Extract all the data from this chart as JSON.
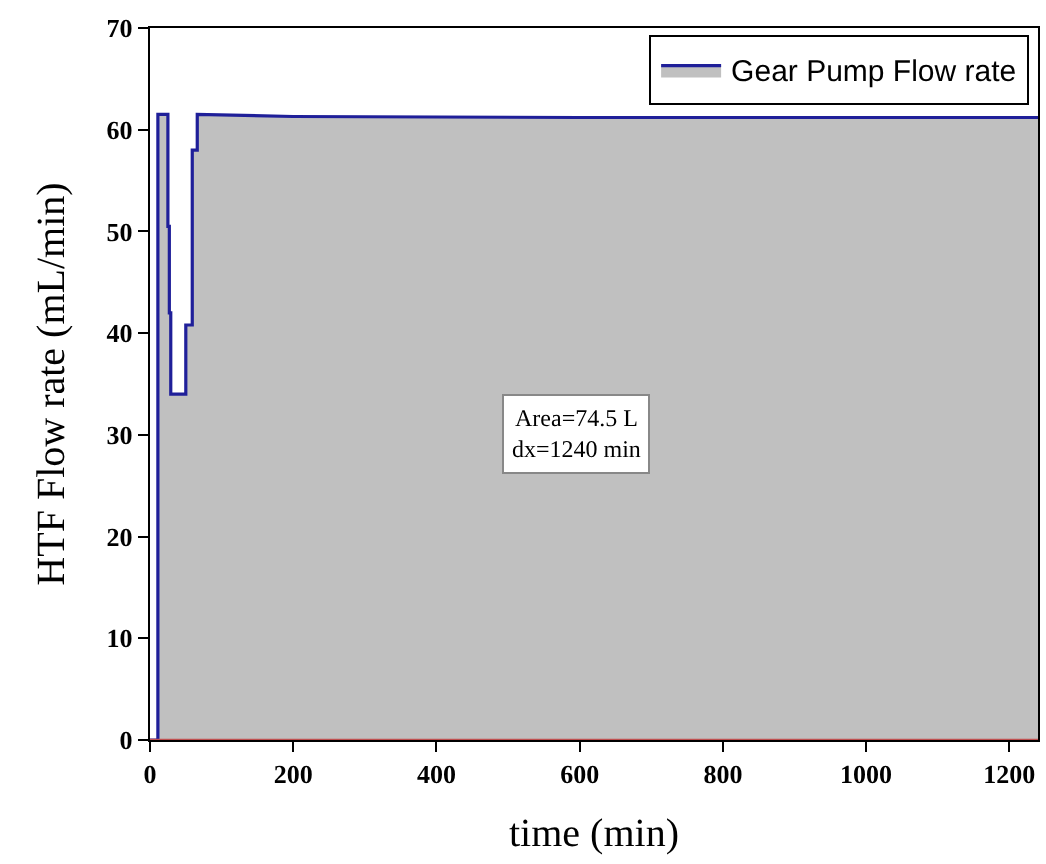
{
  "chart_data": {
    "type": "area",
    "xlabel": "time (min)",
    "ylabel": "HTF Flow rate (mL/min)",
    "xlim": [
      0,
      1240
    ],
    "xticks": [
      0,
      200,
      400,
      600,
      800,
      1000,
      1200
    ],
    "ylim": [
      0,
      70
    ],
    "yticks": [
      0,
      10,
      20,
      30,
      40,
      50,
      60,
      70
    ],
    "series": [
      {
        "name": "Gear Pump Flow rate",
        "color": "#1f1f99",
        "x": [
          0,
          11,
          11,
          25,
          25,
          27,
          27,
          29,
          29,
          50,
          50,
          59,
          59,
          66,
          66,
          200,
          600,
          1240
        ],
        "values": [
          0,
          0,
          61.5,
          61.5,
          50.5,
          50.5,
          42,
          42,
          34,
          34,
          40.8,
          40.8,
          58,
          58,
          61.5,
          61.3,
          61.2,
          61.2
        ]
      }
    ],
    "ref_lines": [
      {
        "axis": "y",
        "value": 0,
        "label": null,
        "color": "#c05050"
      }
    ],
    "annotations": [
      "Area=74.5 L\ndx=1240 min"
    ],
    "legend": "top right"
  }
}
